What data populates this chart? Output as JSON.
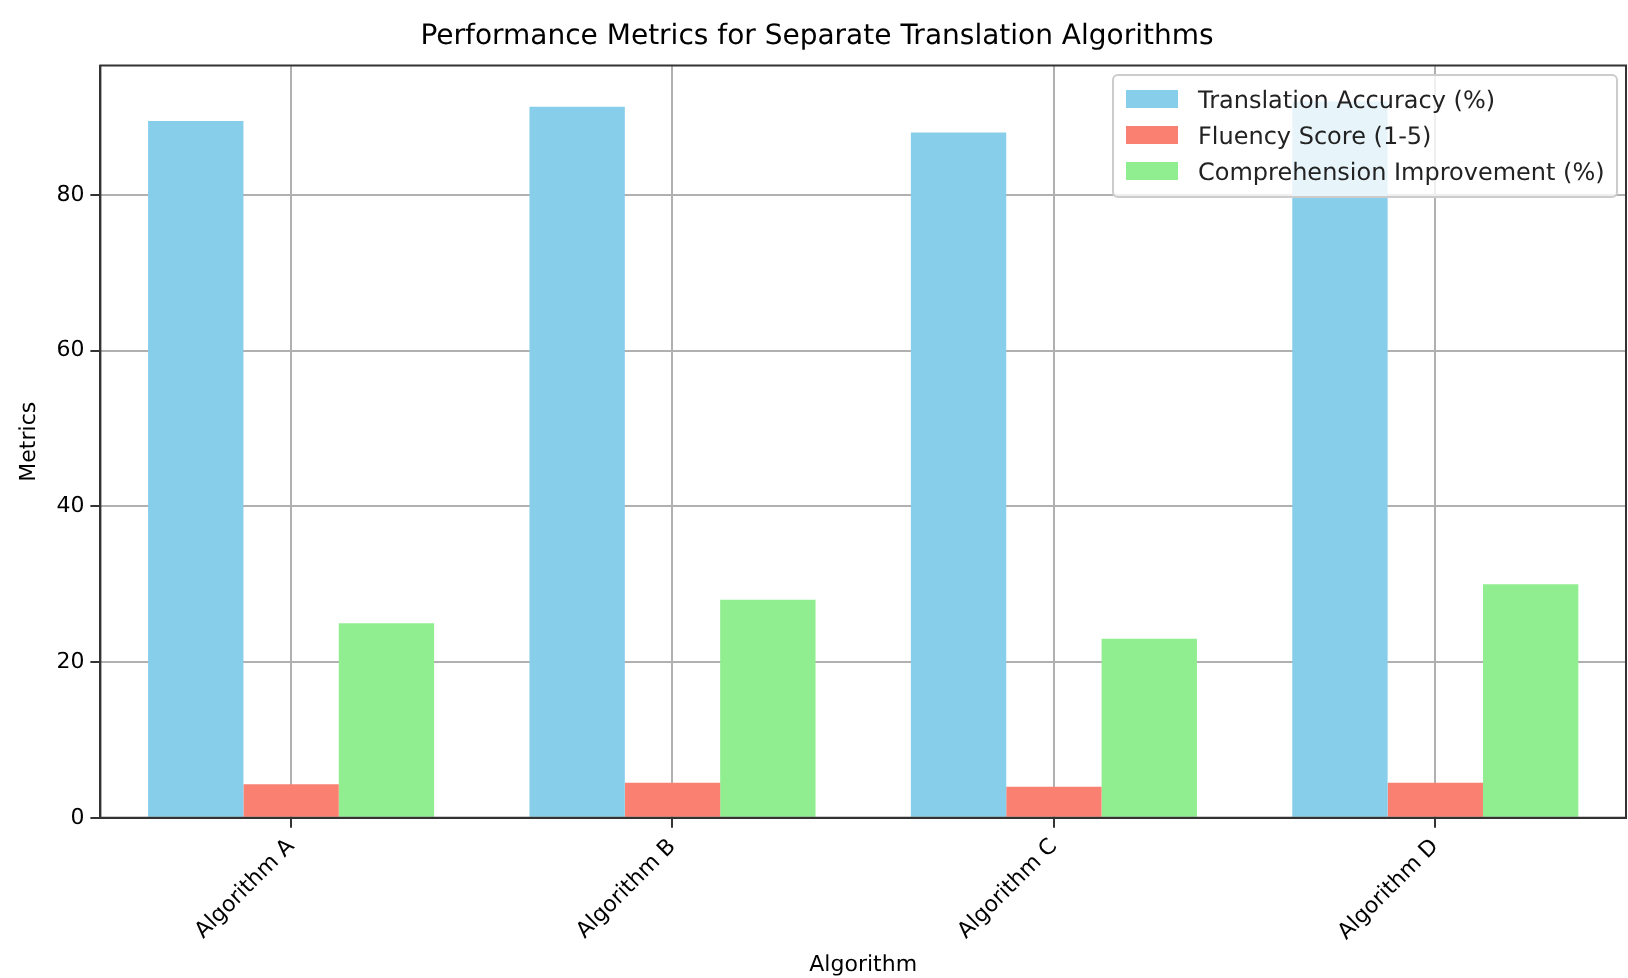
{
  "chart_data": {
    "type": "bar",
    "title": "Performance Metrics for Separate Translation Algorithms",
    "xlabel": "Algorithm",
    "ylabel": "Metrics",
    "categories": [
      "Algorithm A",
      "Algorithm B",
      "Algorithm C",
      "Algorithm D"
    ],
    "series": [
      {
        "name": "Translation Accuracy (%)",
        "color": "#87ceeb",
        "values": [
          89.5,
          91.3,
          88,
          92
        ]
      },
      {
        "name": "Fluency Score (1-5)",
        "color": "#fa8072",
        "values": [
          4.3,
          4.5,
          4.0,
          4.5
        ]
      },
      {
        "name": "Comprehension Improvement (%)",
        "color": "#90ee90",
        "values": [
          25,
          28,
          23,
          30
        ]
      }
    ],
    "ylim": [
      0,
      96.6
    ],
    "yticks": [
      0,
      20,
      40,
      60,
      80
    ],
    "grid": true,
    "legend": "top right"
  }
}
